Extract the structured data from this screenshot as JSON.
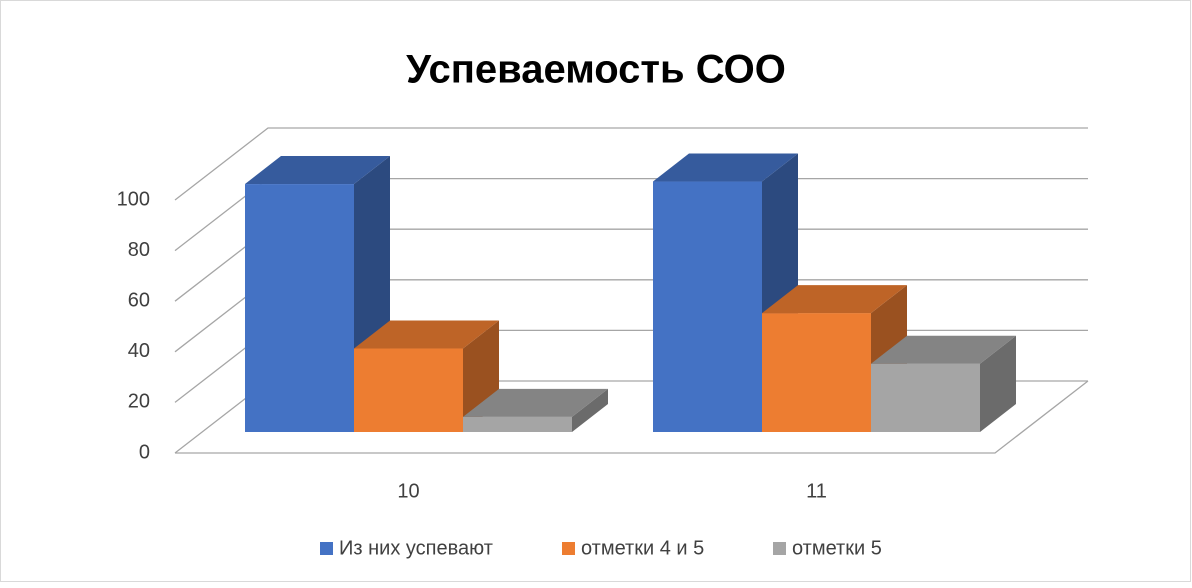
{
  "chart_data": {
    "type": "bar3d",
    "title": "Успеваемость СОО",
    "categories": [
      "10",
      "11"
    ],
    "series": [
      {
        "name": "Из них успевают",
        "color": "#4472c4",
        "values": [
          98,
          99
        ]
      },
      {
        "name": "отметки 4 и 5",
        "color": "#ed7d31",
        "values": [
          33,
          47
        ]
      },
      {
        "name": "отметки 5",
        "color": "#a5a5a5",
        "values": [
          6,
          27
        ]
      }
    ],
    "ylim": [
      0,
      100
    ],
    "yticks": [
      0,
      20,
      40,
      60,
      80,
      100
    ],
    "grid": true,
    "legend": "bottom"
  }
}
